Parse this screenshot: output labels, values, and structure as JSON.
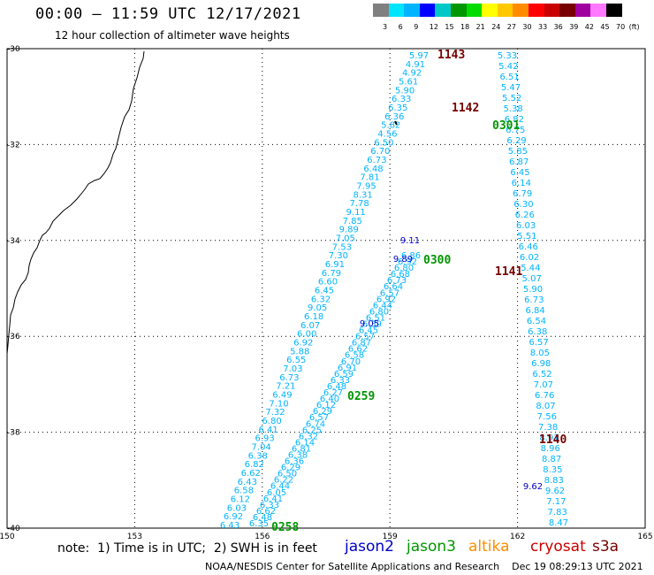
{
  "header": {
    "title": "00:00 – 11:59 UTC 12/17/2021",
    "subtitle": "12 hour collection of altimeter wave heights"
  },
  "colorbar": {
    "unit": "(ft)",
    "colors": [
      "#808080",
      "#00e5ff",
      "#00b4ff",
      "#0000ff",
      "#00c8c8",
      "#009600",
      "#00dc00",
      "#ffff00",
      "#ffc800",
      "#ff8c00",
      "#ff0000",
      "#c80000",
      "#780000",
      "#a000a0",
      "#ff78ff",
      "#000000"
    ],
    "labels": [
      "3",
      "6",
      "9",
      "12",
      "15",
      "18",
      "21",
      "24",
      "27",
      "30",
      "33",
      "36",
      "39",
      "42",
      "45",
      "70"
    ]
  },
  "axes": {
    "lat_labels": [
      "-30",
      "-32",
      "-34",
      "-36",
      "-38",
      "-40"
    ],
    "lon_labels": [
      "150",
      "153",
      "156",
      "159",
      "162",
      "165"
    ]
  },
  "times": {
    "track_a": [
      "1143",
      "1142",
      "1141",
      "1140"
    ],
    "track_b": [
      "0301",
      "0300"
    ],
    "track_c": [
      "0259",
      "0258"
    ]
  },
  "track_a": {
    "color": "#00b4ff",
    "values": [
      "5.33",
      "5.42",
      "6.51",
      "5.47",
      "5.52",
      "5.38",
      "6.82",
      "6.75",
      "6.29",
      "5.85",
      "6.87",
      "6.45",
      "6.14",
      "6.79",
      "6.30",
      "6.26",
      "6.03",
      "5.51",
      "6.46",
      "6.02",
      "5.44",
      "5.07",
      "5.90",
      "6.73",
      "6.84",
      "6.54",
      "6.38",
      "6.57",
      "8.05",
      "6.98",
      "6.52",
      "7.07",
      "6.76",
      "8.07",
      "7.56",
      "7.38",
      "8.91",
      "8.96",
      "8.87",
      "8.35",
      "8.83",
      "9.62",
      "7.17",
      "7.83",
      "8.47"
    ]
  },
  "track_b": {
    "color": "#00b4ff",
    "values": [
      "5.97",
      "4.91",
      "4.92",
      "5.61",
      "5.90",
      "6.33",
      "6.35",
      "6.36",
      "5.82",
      "4.56",
      "6.50",
      "6.70",
      "6.73",
      "6.48",
      "7.81",
      "7.95",
      "8.31",
      "7.78",
      "9.11",
      "7.85",
      "9.89",
      "7.05",
      "7.53",
      "7.30",
      "6.91",
      "6.79",
      "6.60",
      "6.45",
      "6.32",
      "9.05",
      "6.18",
      "6.07",
      "6.00",
      "6.92",
      "5.88",
      "6.55",
      "7.03",
      "6.73",
      "7.21",
      "6.49",
      "7.10",
      "7.32",
      "6.80",
      "6.41",
      "6.93",
      "7.04",
      "6.38",
      "6.82",
      "6.62",
      "6.43",
      "6.58",
      "6.12",
      "6.03",
      "6.92",
      "6.43"
    ]
  },
  "track_c": {
    "color": "#00b4ff",
    "values": [
      "6.86",
      "6.92",
      "6.80",
      "6.68",
      "6.73",
      "6.64",
      "6.57",
      "6.92",
      "6.44",
      "6.80",
      "6.51",
      "6.39",
      "6.45",
      "6.57",
      "6.87",
      "6.62",
      "6.58",
      "6.70",
      "6.91",
      "6.59",
      "6.33",
      "6.48",
      "6.27",
      "6.40",
      "6.12",
      "6.29",
      "6.57",
      "6.74",
      "6.25",
      "6.32",
      "6.14",
      "6.81",
      "6.38",
      "6.36",
      "6.29",
      "6.50",
      "6.22",
      "6.44",
      "6.05",
      "6.41",
      "6.33",
      "6.62",
      "6.48",
      "6.35"
    ]
  },
  "footer": {
    "note": "note:  1) Time is in UTC;  2) SWH is in feet",
    "satellites": [
      {
        "name": "jason2",
        "color": "#0000cc"
      },
      {
        "name": "jason3",
        "color": "#009600"
      },
      {
        "name": "altika",
        "color": "#ff8c00"
      },
      {
        "name": "cryosat",
        "color": "#cc0000"
      },
      {
        "name": "s3a",
        "color": "#780000"
      }
    ],
    "credit": "NOAA/NESDIS Center for Satellite Applications and Research    Dec 19 08:29:13 UTC 2021"
  }
}
